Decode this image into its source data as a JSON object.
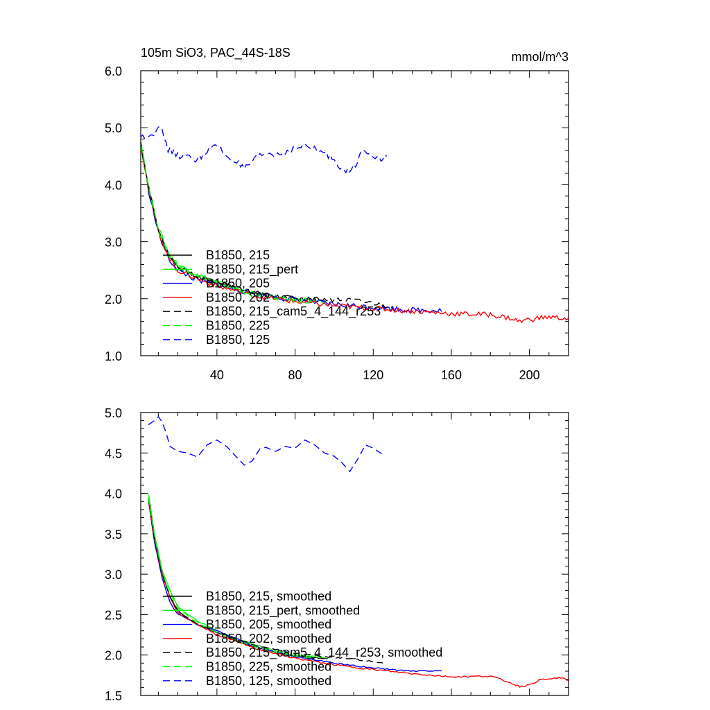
{
  "chart_data": [
    {
      "type": "line",
      "title": "105m SiO3, PAC_44S-18S",
      "units": "mmol/m^3",
      "xlim": [
        1,
        220
      ],
      "ylim": [
        1.0,
        6.0
      ],
      "xticks": [
        40,
        80,
        120,
        160,
        200
      ],
      "yticks": [
        1.0,
        2.0,
        3.0,
        4.0,
        5.0,
        6.0
      ],
      "ytick_labels": [
        "1.0",
        "2.0",
        "3.0",
        "4.0",
        "5.0",
        "6.0"
      ],
      "legend_position": "lower-left",
      "series": [
        {
          "name": "B1850, 215",
          "color": "#000000",
          "dash": "solid",
          "noise": 0.04,
          "x": [
            1,
            5,
            10,
            15,
            20,
            30,
            40,
            50,
            60,
            70,
            80,
            90,
            95
          ],
          "y": [
            4.75,
            3.95,
            3.2,
            2.78,
            2.55,
            2.38,
            2.3,
            2.2,
            2.1,
            2.05,
            2.0,
            1.98,
            1.97
          ]
        },
        {
          "name": "B1850, 215_pert",
          "color": "#00ff00",
          "dash": "solid",
          "noise": 0.04,
          "x": [
            1,
            5,
            10,
            15,
            20,
            30,
            40,
            50,
            60,
            70,
            80,
            90,
            96
          ],
          "y": [
            4.78,
            3.98,
            3.25,
            2.82,
            2.6,
            2.42,
            2.3,
            2.18,
            2.08,
            2.02,
            1.98,
            1.96,
            1.95
          ]
        },
        {
          "name": "B1850, 205",
          "color": "#0000ff",
          "dash": "solid",
          "noise": 0.05,
          "x": [
            1,
            5,
            10,
            15,
            20,
            30,
            40,
            60,
            80,
            100,
            120,
            140,
            155
          ],
          "y": [
            4.7,
            3.9,
            3.15,
            2.72,
            2.5,
            2.32,
            2.25,
            2.08,
            1.98,
            1.9,
            1.85,
            1.8,
            1.8
          ]
        },
        {
          "name": "B1850, 202",
          "color": "#ff0000",
          "dash": "solid",
          "noise": 0.045,
          "x": [
            1,
            5,
            10,
            15,
            20,
            30,
            40,
            60,
            80,
            100,
            120,
            140,
            160,
            180,
            190,
            195,
            200,
            210,
            220
          ],
          "y": [
            4.72,
            3.92,
            3.18,
            2.75,
            2.5,
            2.35,
            2.22,
            2.05,
            1.95,
            1.88,
            1.83,
            1.78,
            1.74,
            1.72,
            1.66,
            1.6,
            1.64,
            1.68,
            1.65
          ]
        },
        {
          "name": "B1850, 215_cam5_4_144_r253",
          "color": "#000000",
          "dash": "dashed",
          "noise": 0.04,
          "x": [
            1,
            5,
            10,
            15,
            20,
            30,
            40,
            60,
            80,
            100,
            110,
            120,
            125,
            130
          ],
          "y": [
            4.73,
            3.95,
            3.2,
            2.78,
            2.55,
            2.38,
            2.28,
            2.1,
            2.0,
            1.98,
            1.97,
            1.92,
            1.88,
            1.86
          ]
        },
        {
          "name": "B1850, 225",
          "color": "#00ff00",
          "dash": "dashed",
          "noise": 0.04,
          "x": [
            1,
            5,
            10,
            15,
            20,
            30,
            40,
            50,
            60,
            70,
            80,
            90
          ],
          "y": [
            4.72,
            3.95,
            3.2,
            2.78,
            2.55,
            2.4,
            2.28,
            2.15,
            2.05,
            2.0,
            1.97,
            1.95
          ]
        },
        {
          "name": "B1850, 125",
          "color": "#0000ff",
          "dash": "dashed",
          "noise": 0.06,
          "x": [
            1,
            5,
            8,
            10,
            13,
            15,
            20,
            25,
            30,
            35,
            40,
            45,
            50,
            54,
            60,
            65,
            70,
            75,
            80,
            85,
            90,
            95,
            100,
            105,
            108,
            112,
            115,
            120,
            125,
            127
          ],
          "y": [
            4.83,
            4.87,
            4.9,
            5.07,
            4.82,
            4.62,
            4.52,
            4.48,
            4.44,
            4.6,
            4.68,
            4.5,
            4.4,
            4.26,
            4.45,
            4.55,
            4.52,
            4.58,
            4.63,
            4.68,
            4.62,
            4.55,
            4.45,
            4.25,
            4.22,
            4.4,
            4.65,
            4.52,
            4.45,
            4.48
          ]
        }
      ],
      "axis_width_domain": [
        1,
        220
      ]
    },
    {
      "type": "line",
      "xlim": [
        1,
        220
      ],
      "ylim": [
        1.5,
        5.0
      ],
      "xticks": [
        40,
        80,
        120,
        160,
        200
      ],
      "yticks": [
        1.5,
        2.0,
        2.5,
        3.0,
        3.5,
        4.0,
        4.5,
        5.0
      ],
      "ytick_labels": [
        "1.5",
        "2.0",
        "2.5",
        "3.0",
        "3.5",
        "4.0",
        "4.5",
        "5.0"
      ],
      "legend_position": "lower-left",
      "series": [
        {
          "name": "B1850, 215, smoothed",
          "color": "#000000",
          "dash": "solid",
          "noise": 0.008,
          "x": [
            5,
            8,
            12,
            16,
            20,
            25,
            30,
            40,
            50,
            60,
            70,
            80,
            90,
            95
          ],
          "y": [
            3.95,
            3.45,
            3.0,
            2.72,
            2.55,
            2.45,
            2.38,
            2.28,
            2.18,
            2.1,
            2.03,
            1.99,
            1.97,
            1.96
          ]
        },
        {
          "name": "B1850, 215_pert, smoothed",
          "color": "#00ff00",
          "dash": "solid",
          "noise": 0.008,
          "x": [
            5,
            8,
            12,
            16,
            20,
            25,
            30,
            40,
            50,
            60,
            70,
            80,
            90,
            96
          ],
          "y": [
            4.0,
            3.5,
            3.05,
            2.8,
            2.6,
            2.5,
            2.42,
            2.3,
            2.2,
            2.12,
            2.05,
            2.0,
            1.98,
            1.97
          ]
        },
        {
          "name": "B1850, 205, smoothed",
          "color": "#0000ff",
          "dash": "solid",
          "noise": 0.008,
          "x": [
            5,
            8,
            12,
            16,
            20,
            25,
            30,
            40,
            60,
            80,
            100,
            120,
            140,
            155
          ],
          "y": [
            3.9,
            3.4,
            2.95,
            2.65,
            2.5,
            2.45,
            2.38,
            2.3,
            2.1,
            1.98,
            1.9,
            1.84,
            1.8,
            1.81
          ]
        },
        {
          "name": "B1850, 202, smoothed",
          "color": "#ff0000",
          "dash": "solid",
          "noise": 0.01,
          "x": [
            5,
            8,
            12,
            16,
            20,
            25,
            30,
            40,
            60,
            80,
            100,
            120,
            140,
            160,
            180,
            190,
            195,
            200,
            205,
            210,
            215,
            220
          ],
          "y": [
            3.92,
            3.45,
            3.0,
            2.7,
            2.52,
            2.45,
            2.38,
            2.25,
            2.08,
            1.96,
            1.88,
            1.82,
            1.77,
            1.73,
            1.74,
            1.66,
            1.61,
            1.63,
            1.69,
            1.7,
            1.72,
            1.69
          ]
        },
        {
          "name": "B1850, 215_cam5_4_144_r253, smoothed",
          "color": "#000000",
          "dash": "dashed",
          "noise": 0.008,
          "x": [
            5,
            8,
            12,
            16,
            20,
            25,
            30,
            40,
            60,
            80,
            100,
            110,
            120,
            125
          ],
          "y": [
            3.93,
            3.45,
            3.0,
            2.72,
            2.55,
            2.46,
            2.38,
            2.28,
            2.12,
            2.02,
            1.97,
            1.95,
            1.92,
            1.9
          ]
        },
        {
          "name": "B1850, 225, smoothed",
          "color": "#00ff00",
          "dash": "dashed",
          "noise": 0.008,
          "x": [
            5,
            8,
            12,
            16,
            20,
            25,
            30,
            40,
            50,
            60,
            70,
            80,
            90
          ],
          "y": [
            3.95,
            3.48,
            3.02,
            2.76,
            2.58,
            2.48,
            2.4,
            2.28,
            2.18,
            2.1,
            2.03,
            1.99,
            1.96
          ]
        },
        {
          "name": "B1850, 125, smoothed",
          "color": "#0000ff",
          "dash": "dashed",
          "noise": 0.0,
          "x": [
            5,
            8,
            10,
            12,
            14,
            16,
            20,
            25,
            30,
            35,
            40,
            45,
            50,
            54,
            58,
            62,
            65,
            70,
            75,
            80,
            85,
            90,
            95,
            100,
            104,
            108,
            112,
            116,
            120,
            125
          ],
          "y": [
            4.85,
            4.9,
            4.95,
            4.88,
            4.75,
            4.58,
            4.52,
            4.5,
            4.45,
            4.6,
            4.66,
            4.58,
            4.45,
            4.35,
            4.4,
            4.55,
            4.57,
            4.52,
            4.58,
            4.56,
            4.66,
            4.6,
            4.5,
            4.46,
            4.38,
            4.27,
            4.42,
            4.6,
            4.56,
            4.48
          ]
        }
      ]
    }
  ]
}
